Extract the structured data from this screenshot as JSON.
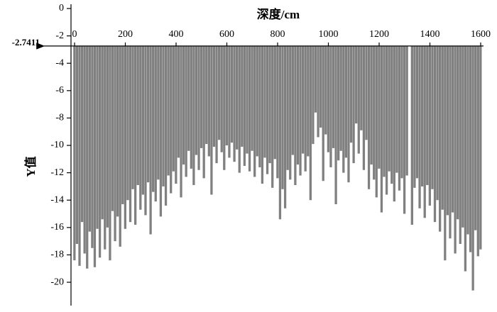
{
  "chart_data": {
    "type": "bar",
    "x_label": "深度/cm",
    "y_label": "Y值",
    "baseline": -2.7411,
    "color": "#808080",
    "xlim": [
      0,
      1600
    ],
    "xticks": [
      0,
      200,
      400,
      600,
      800,
      1000,
      1200,
      1400,
      1600
    ],
    "ylim": [
      -21.5,
      0
    ],
    "yticks": [
      0,
      -2,
      -4,
      -6,
      -8,
      -10,
      -12,
      -14,
      -16,
      -18,
      -20
    ],
    "x": [
      0,
      10,
      20,
      30,
      40,
      50,
      60,
      70,
      80,
      90,
      100,
      110,
      120,
      130,
      140,
      150,
      160,
      170,
      180,
      190,
      200,
      210,
      220,
      230,
      240,
      250,
      260,
      270,
      280,
      290,
      300,
      310,
      320,
      330,
      340,
      350,
      360,
      370,
      380,
      390,
      400,
      410,
      420,
      430,
      440,
      450,
      460,
      470,
      480,
      490,
      500,
      510,
      520,
      530,
      540,
      550,
      560,
      570,
      580,
      590,
      600,
      610,
      620,
      630,
      640,
      650,
      660,
      670,
      680,
      690,
      700,
      710,
      720,
      730,
      740,
      750,
      760,
      770,
      780,
      790,
      800,
      810,
      820,
      830,
      840,
      850,
      860,
      870,
      880,
      890,
      900,
      910,
      920,
      930,
      940,
      950,
      960,
      970,
      980,
      990,
      1000,
      1010,
      1020,
      1030,
      1040,
      1050,
      1060,
      1070,
      1080,
      1090,
      1100,
      1110,
      1120,
      1130,
      1140,
      1150,
      1160,
      1170,
      1180,
      1190,
      1200,
      1210,
      1220,
      1230,
      1240,
      1250,
      1260,
      1270,
      1280,
      1290,
      1300,
      1310,
      1320,
      1330,
      1340,
      1350,
      1360,
      1370,
      1380,
      1390,
      1400,
      1410,
      1420,
      1430,
      1440,
      1450,
      1460,
      1470,
      1480,
      1490,
      1500,
      1510,
      1520,
      1530,
      1540,
      1550,
      1560,
      1570,
      1580,
      1590,
      1600
    ],
    "values": [
      -18.4,
      -17.2,
      -18.8,
      -15.6,
      -17.9,
      -19.0,
      -16.3,
      -17.5,
      -18.9,
      -16.1,
      -18.2,
      -15.4,
      -17.6,
      -16.0,
      -18.4,
      -14.8,
      -17.0,
      -15.2,
      -17.4,
      -14.3,
      -16.1,
      -14.0,
      -15.6,
      -13.2,
      -15.8,
      -12.9,
      -14.7,
      -13.6,
      -15.1,
      -12.7,
      -16.5,
      -13.4,
      -14.1,
      -12.5,
      -15.2,
      -13.0,
      -14.4,
      -12.2,
      -13.5,
      -11.9,
      -12.8,
      -10.9,
      -13.8,
      -11.4,
      -12.3,
      -10.4,
      -11.7,
      -12.9,
      -10.7,
      -11.8,
      -10.2,
      -12.4,
      -9.9,
      -10.8,
      -13.6,
      -10.1,
      -11.3,
      -9.6,
      -10.5,
      -11.8,
      -10.0,
      -10.9,
      -9.8,
      -11.2,
      -10.3,
      -12.0,
      -10.1,
      -11.5,
      -10.6,
      -11.9,
      -10.4,
      -12.3,
      -10.8,
      -11.6,
      -12.8,
      -10.9,
      -12.1,
      -11.3,
      -13.1,
      -11.0,
      -12.4,
      -15.4,
      -13.2,
      -14.6,
      -11.8,
      -12.5,
      -10.7,
      -12.9,
      -11.4,
      -12.2,
      -10.6,
      -11.9,
      -10.8,
      -14.0,
      -9.9,
      -7.6,
      -9.4,
      -8.7,
      -12.6,
      -9.2,
      -10.5,
      -11.6,
      -10.2,
      -14.3,
      -11.1,
      -10.4,
      -12.0,
      -10.9,
      -12.7,
      -9.8,
      -11.3,
      -8.4,
      -10.6,
      -8.9,
      -11.8,
      -9.6,
      -13.2,
      -11.4,
      -12.5,
      -13.8,
      -11.7,
      -14.9,
      -12.3,
      -13.6,
      -11.9,
      -12.8,
      -14.1,
      -12.0,
      -13.3,
      -12.4,
      -15.0,
      -12.2,
      null,
      -15.8,
      -13.1,
      -12.4,
      -14.6,
      -13.0,
      -15.3,
      -12.9,
      -14.4,
      -13.2,
      -15.6,
      -14.0,
      -16.3,
      -14.7,
      -18.4,
      -15.1,
      -16.8,
      -14.9,
      -17.9,
      -15.4,
      -17.2,
      -16.0,
      -19.2,
      -16.5,
      -17.8,
      -20.6,
      -16.2,
      -18.1,
      -17.6
    ]
  }
}
